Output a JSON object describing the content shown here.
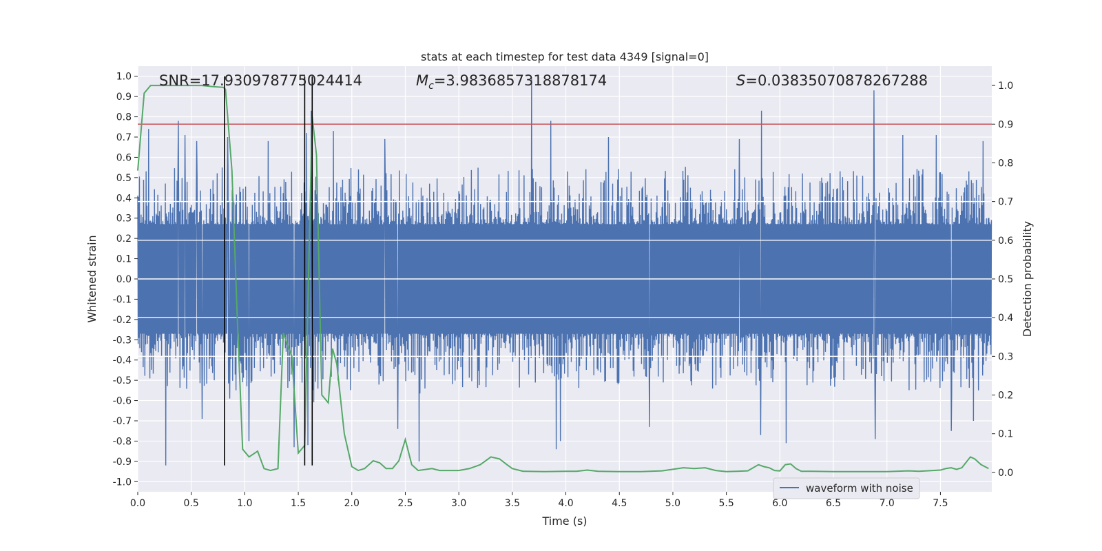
{
  "chart_data": {
    "type": "line",
    "title": "stats at each timestep for test data 4349 [signal=0]",
    "xlabel": "Time (s)",
    "ylabel_left": "Whitened strain",
    "ylabel_right": "Detection probability",
    "xlim": [
      0.0,
      7.98
    ],
    "ylim_left": [
      -1.05,
      1.05
    ],
    "ylim_right": [
      -0.05,
      1.05
    ],
    "x_ticks": [
      "0.0",
      "0.5",
      "1.0",
      "1.5",
      "2.0",
      "2.5",
      "3.0",
      "3.5",
      "4.0",
      "4.5",
      "5.0",
      "5.5",
      "6.0",
      "6.5",
      "7.0",
      "7.5"
    ],
    "y_ticks_left": [
      "-1.0",
      "-0.9",
      "-0.8",
      "-0.7",
      "-0.6",
      "-0.5",
      "-0.4",
      "-0.3",
      "-0.2",
      "-0.1",
      "0.0",
      "0.1",
      "0.2",
      "0.3",
      "0.4",
      "0.5",
      "0.6",
      "0.7",
      "0.8",
      "0.9",
      "1.0"
    ],
    "y_ticks_right": [
      "0.0",
      "0.1",
      "0.2",
      "0.3",
      "0.4",
      "0.5",
      "0.6",
      "0.7",
      "0.8",
      "0.9",
      "1.0"
    ],
    "grid": true,
    "legend": {
      "placement": "lower-right",
      "entries": [
        "waveform with noise"
      ]
    },
    "annotations": {
      "snr": "SNR=17.930978775024414",
      "mc_symbol": "M",
      "mc_sub": "c",
      "mc_value": "=3.9836857318878174",
      "s_symbol": "S",
      "s_value": "=0.03835070878267288"
    },
    "threshold": {
      "axis": "right",
      "value": 0.9,
      "color": "#c44e52"
    },
    "vertical_markers": [
      0.81,
      1.56,
      1.63
    ],
    "waveform": {
      "name": "waveform with noise",
      "color": "#4c72b0",
      "sample_rate": 256,
      "core_amplitude": 0.27,
      "spikes": [
        {
          "t": 0.26,
          "v": -0.92
        },
        {
          "t": 0.38,
          "v": 0.78
        },
        {
          "t": 0.1,
          "v": 0.74
        },
        {
          "t": 0.44,
          "v": 0.71
        },
        {
          "t": 0.55,
          "v": 0.68
        },
        {
          "t": 0.6,
          "v": -0.69
        },
        {
          "t": 0.84,
          "v": 0.7
        },
        {
          "t": 0.86,
          "v": -0.59
        },
        {
          "t": 1.04,
          "v": -0.8
        },
        {
          "t": 1.22,
          "v": 0.68
        },
        {
          "t": 1.46,
          "v": -0.83
        },
        {
          "t": 1.59,
          "v": -0.82
        },
        {
          "t": 1.58,
          "v": 0.72
        },
        {
          "t": 1.62,
          "v": 0.83
        },
        {
          "t": 1.83,
          "v": 0.73
        },
        {
          "t": 2.31,
          "v": 0.69
        },
        {
          "t": 2.43,
          "v": -0.74
        },
        {
          "t": 2.63,
          "v": -0.9
        },
        {
          "t": 3.68,
          "v": 0.99
        },
        {
          "t": 3.86,
          "v": 0.78
        },
        {
          "t": 3.91,
          "v": -0.84
        },
        {
          "t": 3.95,
          "v": -0.8
        },
        {
          "t": 4.4,
          "v": 0.7
        },
        {
          "t": 4.78,
          "v": -0.73
        },
        {
          "t": 5.62,
          "v": 0.69
        },
        {
          "t": 5.83,
          "v": 0.83
        },
        {
          "t": 5.82,
          "v": -0.77
        },
        {
          "t": 6.06,
          "v": -0.81
        },
        {
          "t": 6.88,
          "v": 0.93
        },
        {
          "t": 6.89,
          "v": -0.79
        },
        {
          "t": 7.15,
          "v": 0.71
        },
        {
          "t": 7.46,
          "v": 0.71
        },
        {
          "t": 7.6,
          "v": -0.75
        },
        {
          "t": 7.81,
          "v": -0.7
        },
        {
          "t": 7.9,
          "v": 0.68
        }
      ]
    },
    "probability": {
      "name": "detection probability",
      "color": "#55a868",
      "x": [
        0.0,
        0.06,
        0.12,
        0.2,
        0.3,
        0.4,
        0.5,
        0.6,
        0.7,
        0.8,
        0.82,
        0.88,
        0.93,
        0.98,
        1.04,
        1.12,
        1.18,
        1.24,
        1.31,
        1.36,
        1.44,
        1.5,
        1.56,
        1.6,
        1.63,
        1.67,
        1.72,
        1.78,
        1.82,
        1.86,
        1.93,
        2.0,
        2.06,
        2.12,
        2.2,
        2.26,
        2.32,
        2.38,
        2.44,
        2.5,
        2.56,
        2.62,
        2.7,
        2.75,
        2.82,
        3.0,
        3.1,
        3.2,
        3.3,
        3.38,
        3.45,
        3.5,
        3.6,
        3.8,
        4.0,
        4.1,
        4.2,
        4.3,
        4.5,
        4.7,
        4.9,
        5.0,
        5.1,
        5.2,
        5.3,
        5.4,
        5.5,
        5.6,
        5.7,
        5.8,
        5.85,
        5.9,
        5.95,
        6.0,
        6.05,
        6.1,
        6.15,
        6.2,
        6.3,
        6.5,
        6.8,
        7.0,
        7.2,
        7.3,
        7.5,
        7.55,
        7.6,
        7.65,
        7.7,
        7.78,
        7.82,
        7.88,
        7.95
      ],
      "y": [
        0.78,
        0.98,
        1.0,
        1.0,
        1.0,
        1.0,
        1.0,
        1.0,
        0.997,
        0.995,
        0.99,
        0.78,
        0.4,
        0.06,
        0.04,
        0.055,
        0.01,
        0.005,
        0.01,
        0.36,
        0.3,
        0.05,
        0.07,
        0.56,
        0.92,
        0.82,
        0.2,
        0.18,
        0.32,
        0.28,
        0.1,
        0.015,
        0.005,
        0.01,
        0.03,
        0.025,
        0.01,
        0.01,
        0.03,
        0.085,
        0.02,
        0.005,
        0.008,
        0.01,
        0.005,
        0.005,
        0.01,
        0.02,
        0.04,
        0.035,
        0.02,
        0.01,
        0.003,
        0.002,
        0.003,
        0.003,
        0.006,
        0.003,
        0.002,
        0.002,
        0.004,
        0.008,
        0.012,
        0.01,
        0.012,
        0.005,
        0.002,
        0.003,
        0.004,
        0.02,
        0.015,
        0.012,
        0.005,
        0.004,
        0.02,
        0.022,
        0.01,
        0.003,
        0.003,
        0.002,
        0.002,
        0.002,
        0.004,
        0.003,
        0.006,
        0.01,
        0.012,
        0.008,
        0.012,
        0.04,
        0.035,
        0.02,
        0.01
      ]
    }
  }
}
